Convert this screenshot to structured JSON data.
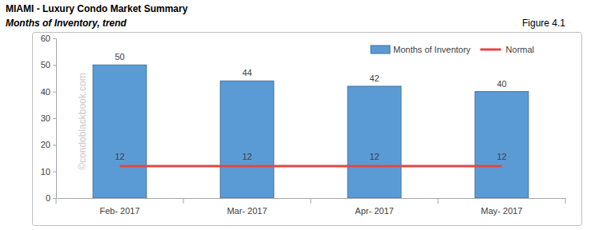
{
  "chart_data": {
    "type": "bar",
    "title": "MIAMI - Luxury Condo Market Summary",
    "subtitle": "Months of Inventory, trend",
    "annotations": [
      "Figure 4.1",
      "©condoblackbook.com"
    ],
    "categories": [
      "Feb- 2017",
      "Mar- 2017",
      "Apr- 2017",
      "May- 2017"
    ],
    "series": [
      {
        "name": "Months of Inventory",
        "type": "bar",
        "color": "#5b9bd5",
        "values": [
          50,
          44,
          42,
          40
        ]
      },
      {
        "name": "Normal",
        "type": "line",
        "color": "#e04848",
        "values": [
          12,
          12,
          12,
          12
        ]
      }
    ],
    "ylim": [
      0,
      60
    ],
    "yticks": [
      0,
      10,
      20,
      30,
      40,
      50,
      60
    ],
    "grid": false,
    "legend": "top-right",
    "data_labels": true
  }
}
